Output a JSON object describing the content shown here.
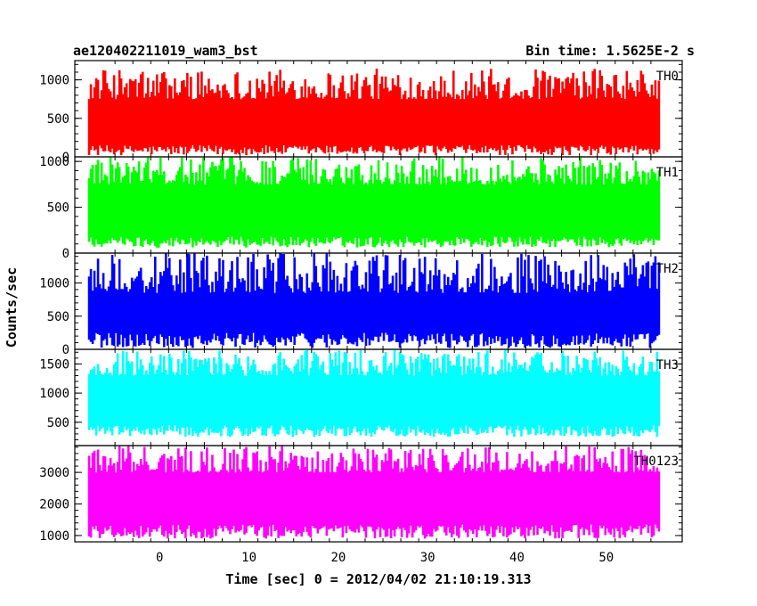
{
  "chart_data": {
    "type": "line",
    "title_left": "ae120402211019_wam3_bst",
    "title_right": "Bin time: 1.5625E-2 s",
    "xlabel": "Time [sec] 0 = 2012/04/02 21:10:19.313",
    "ylabel": "Counts/sec",
    "xlim": [
      -9.5,
      58.5
    ],
    "x_data_range": [
      -8.0,
      56.0
    ],
    "x_ticks": [
      0,
      10,
      20,
      30,
      40,
      50
    ],
    "grid": false,
    "panels": [
      {
        "name": "TH0",
        "color": "#ff0000",
        "ylim": [
          0,
          1250
        ],
        "y_ticks": [
          0,
          500,
          1000
        ],
        "low_range": [
          20,
          150
        ],
        "high_range": [
          750,
          1150
        ],
        "mean": 550
      },
      {
        "name": "TH1",
        "color": "#00ff00",
        "ylim": [
          0,
          1050
        ],
        "y_ticks": [
          0,
          500,
          1000
        ],
        "low_range": [
          60,
          180
        ],
        "high_range": [
          750,
          1050
        ],
        "mean": 550
      },
      {
        "name": "TH2",
        "color": "#0000ff",
        "ylim": [
          0,
          1450
        ],
        "y_ticks": [
          0,
          500,
          1000
        ],
        "low_range": [
          20,
          250
        ],
        "high_range": [
          850,
          1450
        ],
        "mean": 600
      },
      {
        "name": "TH3",
        "color": "#00ffff",
        "ylim": [
          100,
          1750
        ],
        "y_ticks": [
          500,
          1000,
          1500
        ],
        "low_range": [
          250,
          450
        ],
        "high_range": [
          1300,
          1750
        ],
        "mean": 1000
      },
      {
        "name": "TH0123",
        "color": "#ff00ff",
        "ylim": [
          800,
          3850
        ],
        "y_ticks": [
          1000,
          2000,
          3000
        ],
        "low_range": [
          900,
          1350
        ],
        "high_range": [
          3000,
          3850
        ],
        "mean": 2200
      }
    ]
  }
}
